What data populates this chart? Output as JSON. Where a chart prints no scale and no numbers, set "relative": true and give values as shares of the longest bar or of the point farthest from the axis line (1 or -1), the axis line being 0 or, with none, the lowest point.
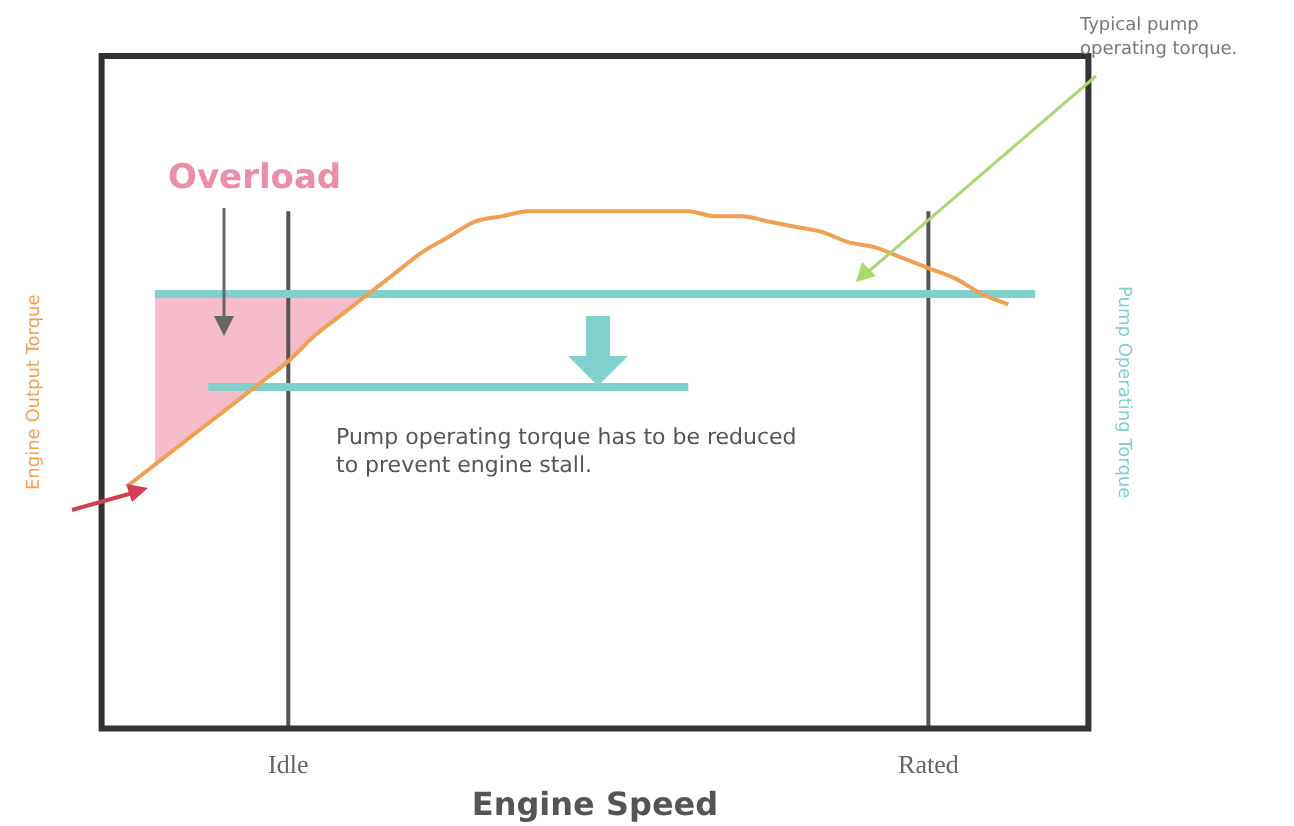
{
  "chart_data": {
    "type": "line",
    "relative": true,
    "xlabel": "Engine Speed",
    "ylabel": "Engine Output Torque",
    "y2label": "Pump Operating Torque",
    "categories": [
      null,
      null,
      null,
      null,
      null,
      null,
      null,
      "Idle",
      null,
      null,
      null,
      null,
      null,
      null,
      null,
      null,
      null,
      null,
      null,
      null,
      null,
      null,
      null,
      null,
      null,
      null,
      null,
      null,
      null,
      null,
      null,
      "Rated",
      null,
      null,
      null,
      null,
      null,
      null
    ],
    "series": [
      {
        "color": "#f0a050",
        "values": [
          null,
          0.47,
          0.51,
          0.55,
          0.59,
          0.63,
          0.67,
          0.71,
          0.76,
          0.8,
          0.84,
          0.88,
          0.92,
          0.95,
          0.98,
          0.99,
          1,
          1,
          1,
          1,
          1,
          1,
          1,
          0.99,
          0.99,
          0.98,
          0.97,
          0.96,
          0.94,
          0.93,
          0.91,
          0.89,
          0.87,
          0.84,
          0.82,
          null,
          null,
          null
        ]
      },
      {
        "color": "#80d0cc",
        "values": [
          null,
          null,
          0.84,
          0.84,
          0.84,
          0.84,
          0.84,
          0.84,
          0.84,
          0.84,
          0.84,
          0.84,
          0.84,
          0.84,
          0.84,
          0.84,
          0.84,
          0.84,
          0.84,
          0.84,
          0.84,
          0.84,
          0.84,
          0.84,
          0.84,
          0.84,
          0.84,
          0.84,
          0.84,
          0.84,
          0.84,
          0.84,
          0.84,
          0.84,
          0.84,
          0.84,
          null,
          null
        ],
        "lower": [
          null,
          null,
          0.51,
          0.55,
          0.59,
          0.63,
          0.67,
          0.71,
          0.76,
          0.8,
          0.84,
          null,
          null,
          null,
          null,
          null,
          null,
          null,
          null,
          null,
          null,
          null,
          null,
          null,
          null,
          null,
          null,
          null,
          null,
          null,
          null,
          null,
          null,
          null,
          null,
          null,
          null,
          null
        ],
        "upper": [
          null,
          null,
          0.84,
          0.84,
          0.84,
          0.84,
          0.84,
          0.84,
          0.84,
          0.84,
          0.84,
          null,
          null,
          null,
          null,
          null,
          null,
          null,
          null,
          null,
          null,
          null,
          null,
          null,
          null,
          null,
          null,
          null,
          null,
          null,
          null,
          null,
          null,
          null,
          null,
          null,
          null,
          null
        ]
      },
      {
        "color": "#80d0cc",
        "values": [
          null,
          null,
          null,
          null,
          0.66,
          0.66,
          0.66,
          0.66,
          0.66,
          0.66,
          0.66,
          0.66,
          0.66,
          0.66,
          0.66,
          0.66,
          0.66,
          0.66,
          0.66,
          0.66,
          0.66,
          0.66,
          0.66,
          null,
          null,
          null,
          null,
          null,
          null,
          null,
          null,
          null,
          null,
          null,
          null,
          null,
          null,
          null
        ]
      }
    ],
    "ref_lines": [
      {
        "axis": "x",
        "value": "Idle",
        "color": "#555555"
      },
      {
        "axis": "x",
        "value": "Rated",
        "color": "#555555"
      }
    ],
    "annotations": [
      "Overload",
      "Pump operating torque has to be reduced to prevent engine stall.",
      "Typical pump operating torque."
    ],
    "legend": false,
    "marker": "none",
    "line_style": "solid"
  }
}
